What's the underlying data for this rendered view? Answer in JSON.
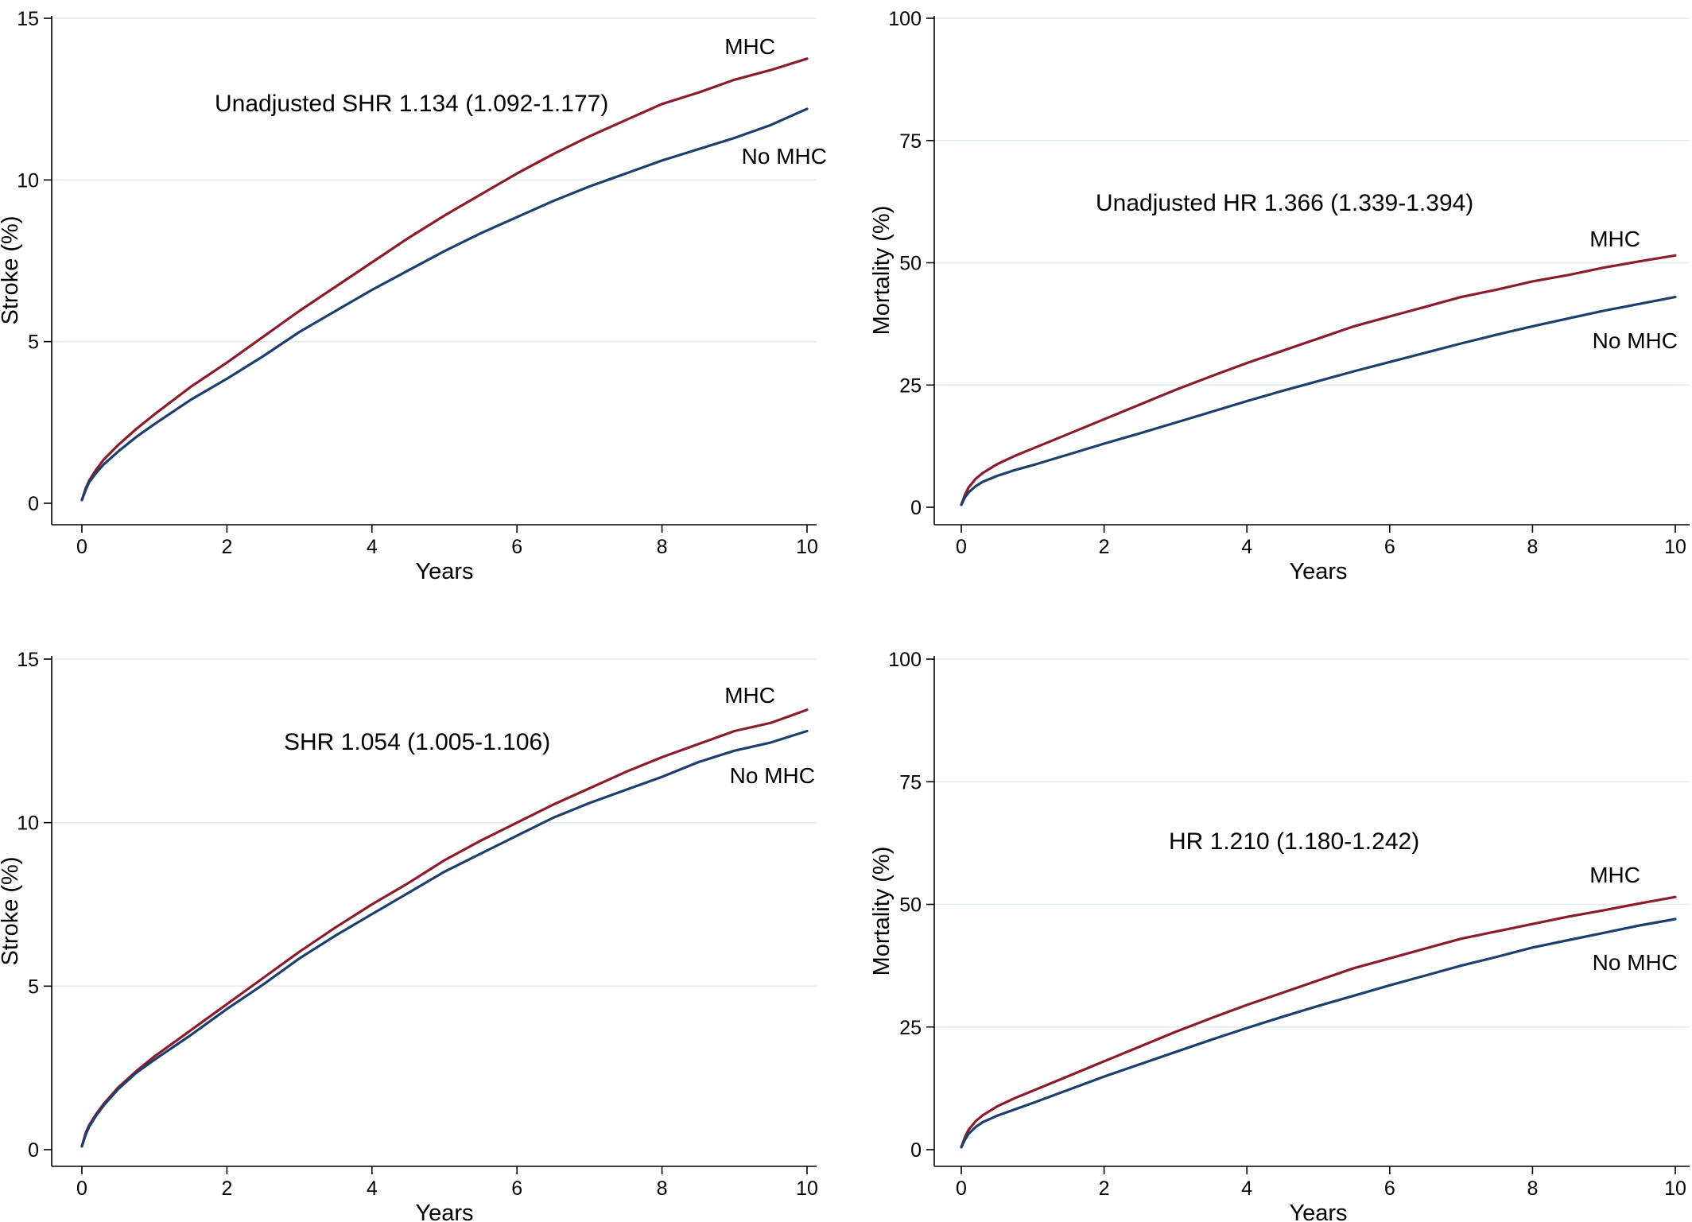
{
  "chart_data": [
    {
      "type": "line",
      "panel": "top-left",
      "title": "",
      "annotation": "Unadjusted SHR 1.134 (1.092-1.177)",
      "xlabel": "Years",
      "ylabel": "Stroke (%)",
      "xlim": [
        0,
        10
      ],
      "ylim": [
        0,
        15
      ],
      "xticks": [
        0,
        2,
        4,
        6,
        8,
        10
      ],
      "yticks": [
        0,
        5,
        10,
        15
      ],
      "grid": true,
      "series": [
        {
          "name": "MHC",
          "color": "#8b1c2b",
          "x": [
            0,
            0.05,
            0.1,
            0.2,
            0.3,
            0.5,
            0.75,
            1,
            1.5,
            2,
            2.5,
            3,
            3.5,
            4,
            4.5,
            5,
            5.5,
            6,
            6.5,
            7,
            7.5,
            8,
            8.5,
            9,
            9.5,
            10
          ],
          "y": [
            0.1,
            0.45,
            0.7,
            1.05,
            1.35,
            1.8,
            2.3,
            2.75,
            3.6,
            4.35,
            5.15,
            5.95,
            6.7,
            7.45,
            8.2,
            8.9,
            9.55,
            10.2,
            10.8,
            11.35,
            11.85,
            12.35,
            12.7,
            13.1,
            13.4,
            13.75
          ]
        },
        {
          "name": "No MHC",
          "color": "#1c3f6e",
          "x": [
            0,
            0.05,
            0.1,
            0.2,
            0.3,
            0.5,
            0.75,
            1,
            1.5,
            2,
            2.5,
            3,
            3.5,
            4,
            4.5,
            5,
            5.5,
            6,
            6.5,
            7,
            7.5,
            8,
            8.5,
            9,
            9.5,
            10
          ],
          "y": [
            0.1,
            0.4,
            0.65,
            0.95,
            1.2,
            1.6,
            2.05,
            2.45,
            3.2,
            3.85,
            4.55,
            5.3,
            5.95,
            6.6,
            7.2,
            7.8,
            8.35,
            8.85,
            9.35,
            9.8,
            10.2,
            10.6,
            10.95,
            11.3,
            11.7,
            12.2
          ]
        }
      ]
    },
    {
      "type": "line",
      "panel": "top-right",
      "title": "",
      "annotation": "Unadjusted  HR 1.366 (1.339-1.394)",
      "xlabel": "Years",
      "ylabel": "Mortality (%)",
      "xlim": [
        0,
        10
      ],
      "ylim": [
        0,
        100
      ],
      "xticks": [
        0,
        2,
        4,
        6,
        8,
        10
      ],
      "yticks": [
        0,
        25,
        50,
        75,
        100
      ],
      "grid": true,
      "series": [
        {
          "name": "MHC",
          "color": "#8b1c2b",
          "x": [
            0,
            0.05,
            0.1,
            0.2,
            0.3,
            0.5,
            0.75,
            1,
            1.5,
            2,
            2.5,
            3,
            3.5,
            4,
            4.5,
            5,
            5.5,
            6,
            6.5,
            7,
            7.5,
            8,
            8.5,
            9,
            9.5,
            10
          ],
          "y": [
            0.5,
            2.5,
            4,
            5.8,
            7,
            8.8,
            10.5,
            12,
            15,
            18,
            21,
            24,
            26.8,
            29.5,
            32,
            34.5,
            37,
            39,
            41,
            43,
            44.5,
            46.2,
            47.5,
            49,
            50.3,
            51.5
          ]
        },
        {
          "name": "No MHC",
          "color": "#1c3f6e",
          "x": [
            0,
            0.05,
            0.1,
            0.2,
            0.3,
            0.5,
            0.75,
            1,
            1.5,
            2,
            2.5,
            3,
            3.5,
            4,
            4.5,
            5,
            5.5,
            6,
            6.5,
            7,
            7.5,
            8,
            8.5,
            9,
            9.5,
            10
          ],
          "y": [
            0.5,
            2,
            3,
            4.3,
            5.2,
            6.4,
            7.6,
            8.6,
            10.8,
            13,
            15.1,
            17.3,
            19.5,
            21.7,
            23.8,
            25.8,
            27.8,
            29.7,
            31.6,
            33.5,
            35.3,
            37,
            38.6,
            40.2,
            41.6,
            43
          ]
        }
      ]
    },
    {
      "type": "line",
      "panel": "bottom-left",
      "title": "",
      "annotation": "SHR 1.054 (1.005-1.106)",
      "xlabel": "Years",
      "ylabel": "Stroke (%)",
      "xlim": [
        0,
        10
      ],
      "ylim": [
        0,
        15
      ],
      "xticks": [
        0,
        2,
        4,
        6,
        8,
        10
      ],
      "yticks": [
        0,
        5,
        10,
        15
      ],
      "grid": true,
      "series": [
        {
          "name": "MHC",
          "color": "#8b1c2b",
          "x": [
            0,
            0.05,
            0.1,
            0.2,
            0.3,
            0.5,
            0.75,
            1,
            1.5,
            2,
            2.5,
            3,
            3.5,
            4,
            4.5,
            5,
            5.5,
            6,
            6.5,
            7,
            7.5,
            8,
            8.5,
            9,
            9.5,
            10
          ],
          "y": [
            0.1,
            0.5,
            0.75,
            1.1,
            1.4,
            1.9,
            2.4,
            2.85,
            3.65,
            4.45,
            5.25,
            6.05,
            6.8,
            7.5,
            8.15,
            8.85,
            9.45,
            10,
            10.55,
            11.05,
            11.55,
            12,
            12.4,
            12.8,
            13.05,
            13.45
          ]
        },
        {
          "name": "No MHC",
          "color": "#1c3f6e",
          "x": [
            0,
            0.05,
            0.1,
            0.2,
            0.3,
            0.5,
            0.75,
            1,
            1.5,
            2,
            2.5,
            3,
            3.5,
            4,
            4.5,
            5,
            5.5,
            6,
            6.5,
            7,
            7.5,
            8,
            8.5,
            9,
            9.5,
            10
          ],
          "y": [
            0.1,
            0.45,
            0.7,
            1.05,
            1.35,
            1.85,
            2.35,
            2.75,
            3.5,
            4.3,
            5.05,
            5.85,
            6.55,
            7.2,
            7.85,
            8.5,
            9.05,
            9.6,
            10.15,
            10.6,
            11,
            11.4,
            11.85,
            12.2,
            12.45,
            12.8
          ]
        }
      ]
    },
    {
      "type": "line",
      "panel": "bottom-right",
      "title": "",
      "annotation": "HR 1.210 (1.180-1.242)",
      "xlabel": "Years",
      "ylabel": "Mortality (%)",
      "xlim": [
        0,
        10
      ],
      "ylim": [
        0,
        100
      ],
      "xticks": [
        0,
        2,
        4,
        6,
        8,
        10
      ],
      "yticks": [
        0,
        25,
        50,
        75,
        100
      ],
      "grid": true,
      "series": [
        {
          "name": "MHC",
          "color": "#8b1c2b",
          "x": [
            0,
            0.05,
            0.1,
            0.2,
            0.3,
            0.5,
            0.75,
            1,
            1.5,
            2,
            2.5,
            3,
            3.5,
            4,
            4.5,
            5,
            5.5,
            6,
            6.5,
            7,
            7.5,
            8,
            8.5,
            9,
            9.5,
            10
          ],
          "y": [
            0.5,
            2.5,
            4,
            5.8,
            7,
            8.8,
            10.5,
            12,
            15,
            18,
            21,
            24,
            26.8,
            29.5,
            32,
            34.5,
            37,
            39,
            41,
            43,
            44.5,
            46,
            47.5,
            48.8,
            50.2,
            51.5
          ]
        },
        {
          "name": "No MHC",
          "color": "#1c3f6e",
          "x": [
            0,
            0.05,
            0.1,
            0.2,
            0.3,
            0.5,
            0.75,
            1,
            1.5,
            2,
            2.5,
            3,
            3.5,
            4,
            4.5,
            5,
            5.5,
            6,
            6.5,
            7,
            7.5,
            8,
            8.5,
            9,
            9.5,
            10
          ],
          "y": [
            0.5,
            2,
            3.2,
            4.6,
            5.6,
            6.9,
            8.2,
            9.5,
            12.2,
            14.9,
            17.4,
            19.9,
            22.4,
            24.8,
            27.1,
            29.3,
            31.4,
            33.5,
            35.5,
            37.5,
            39.3,
            41.2,
            42.7,
            44.2,
            45.7,
            47
          ]
        }
      ]
    }
  ]
}
